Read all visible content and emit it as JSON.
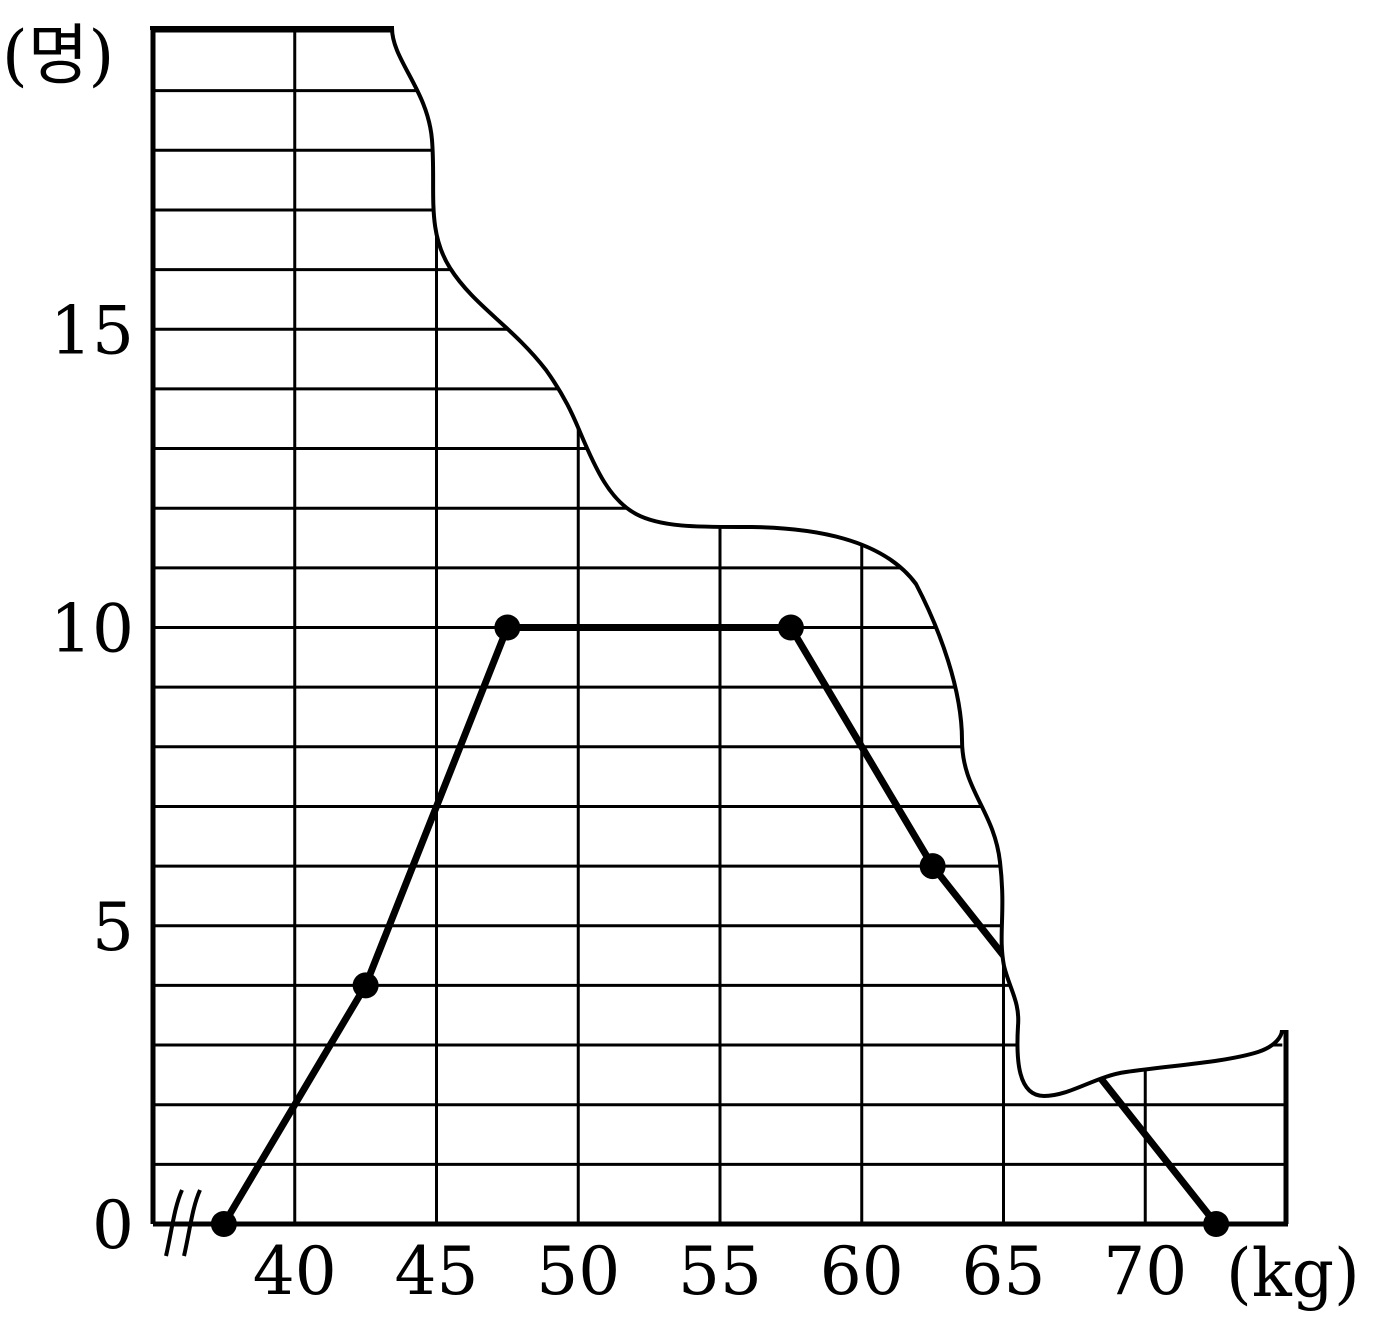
{
  "chart_data": {
    "type": "line",
    "xlabel_unit": "(kg)",
    "ylabel_unit": "(명)",
    "x_ticks": [
      40,
      45,
      50,
      55,
      60,
      65,
      70
    ],
    "y_ticks": [
      0,
      5,
      10,
      15
    ],
    "xlim": [
      35,
      75
    ],
    "ylim": [
      0,
      20
    ],
    "grid": true,
    "series": [
      {
        "points": [
          {
            "x": 37.5,
            "y": 0
          },
          {
            "x": 42.5,
            "y": 4
          },
          {
            "x": 47.5,
            "y": 10
          },
          {
            "x": 57.5,
            "y": 10
          },
          {
            "x": 62.5,
            "y": 6
          },
          {
            "x": 72.5,
            "y": 0
          }
        ]
      }
    ]
  }
}
